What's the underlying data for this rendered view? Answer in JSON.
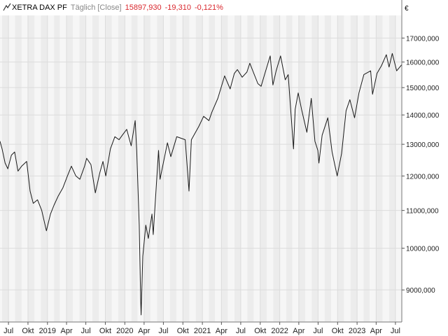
{
  "header": {
    "instrument": "XETRA DAX PF",
    "interval": "Täglich [Close]",
    "last": "15897,930",
    "change": "-19,310",
    "change_pct": "-0,121%",
    "currency": "€",
    "icon": "line-chart-icon"
  },
  "colors": {
    "line": "#1a1a1a",
    "change": "#d9262c",
    "grid": "#dcdcdc",
    "band_a": "#f6f6f6",
    "band_b": "#ececec",
    "text": "#222222",
    "muted": "#888888"
  },
  "chart_data": {
    "type": "line",
    "title": "XETRA DAX PF",
    "xlabel": "",
    "ylabel": "",
    "y_scale": "log",
    "grid": true,
    "ylim": [
      8300,
      18000
    ],
    "x_range": [
      "2018-05-22",
      "2023-07-31"
    ],
    "y_ticks": [
      9000,
      10000,
      11000,
      12000,
      13000,
      14000,
      15000,
      16000,
      17000
    ],
    "y_tick_labels": [
      "9000,000",
      "10000,000",
      "11000,000",
      "12000,000",
      "13000,000",
      "14000,000",
      "15000,000",
      "16000,000",
      "17000,000"
    ],
    "x_ticks": [
      {
        "date": "2018-07-01",
        "label": "Jul"
      },
      {
        "date": "2018-10-01",
        "label": "Okt"
      },
      {
        "date": "2019-01-01",
        "label": "2019"
      },
      {
        "date": "2019-04-01",
        "label": "Apr"
      },
      {
        "date": "2019-07-01",
        "label": "Jul"
      },
      {
        "date": "2019-10-01",
        "label": "Okt"
      },
      {
        "date": "2020-01-01",
        "label": "2020"
      },
      {
        "date": "2020-04-01",
        "label": "Apr"
      },
      {
        "date": "2020-07-01",
        "label": "Jul"
      },
      {
        "date": "2020-10-01",
        "label": "Okt"
      },
      {
        "date": "2021-01-01",
        "label": "2021"
      },
      {
        "date": "2021-04-01",
        "label": "Apr"
      },
      {
        "date": "2021-07-01",
        "label": "Jul"
      },
      {
        "date": "2021-10-01",
        "label": "Okt"
      },
      {
        "date": "2022-01-01",
        "label": "2022"
      },
      {
        "date": "2022-04-01",
        "label": "Apr"
      },
      {
        "date": "2022-07-01",
        "label": "Jul"
      },
      {
        "date": "2022-10-01",
        "label": "Okt"
      },
      {
        "date": "2023-01-01",
        "label": "2023"
      },
      {
        "date": "2023-04-01",
        "label": "Apr"
      },
      {
        "date": "2023-07-01",
        "label": "Jul"
      }
    ],
    "series": [
      {
        "values": [
          [
            "2018-05-22",
            13100
          ],
          [
            "2018-06-01",
            12850
          ],
          [
            "2018-06-15",
            12400
          ],
          [
            "2018-06-28",
            12220
          ],
          [
            "2018-07-15",
            12650
          ],
          [
            "2018-07-30",
            12750
          ],
          [
            "2018-08-15",
            12150
          ],
          [
            "2018-09-01",
            12300
          ],
          [
            "2018-09-25",
            12450
          ],
          [
            "2018-10-11",
            11550
          ],
          [
            "2018-10-26",
            11200
          ],
          [
            "2018-11-15",
            11300
          ],
          [
            "2018-12-05",
            11000
          ],
          [
            "2018-12-27",
            10450
          ],
          [
            "2019-01-15",
            10900
          ],
          [
            "2019-02-01",
            11150
          ],
          [
            "2019-02-20",
            11400
          ],
          [
            "2019-03-15",
            11650
          ],
          [
            "2019-04-05",
            12000
          ],
          [
            "2019-04-24",
            12300
          ],
          [
            "2019-05-15",
            12000
          ],
          [
            "2019-06-03",
            11900
          ],
          [
            "2019-06-25",
            12300
          ],
          [
            "2019-07-05",
            12550
          ],
          [
            "2019-07-25",
            12350
          ],
          [
            "2019-08-15",
            11500
          ],
          [
            "2019-09-05",
            12100
          ],
          [
            "2019-09-20",
            12450
          ],
          [
            "2019-10-03",
            12000
          ],
          [
            "2019-10-25",
            12850
          ],
          [
            "2019-11-15",
            13250
          ],
          [
            "2019-12-05",
            13150
          ],
          [
            "2019-12-20",
            13300
          ],
          [
            "2020-01-10",
            13500
          ],
          [
            "2020-01-31",
            12950
          ],
          [
            "2020-02-19",
            13800
          ],
          [
            "2020-02-26",
            12800
          ],
          [
            "2020-03-09",
            10600
          ],
          [
            "2020-03-16",
            8750
          ],
          [
            "2020-03-18",
            8450
          ],
          [
            "2020-03-26",
            9800
          ],
          [
            "2020-04-09",
            10600
          ],
          [
            "2020-04-21",
            10250
          ],
          [
            "2020-05-08",
            10900
          ],
          [
            "2020-05-14",
            10350
          ],
          [
            "2020-06-08",
            12800
          ],
          [
            "2020-06-15",
            11900
          ],
          [
            "2020-07-20",
            13050
          ],
          [
            "2020-08-05",
            12600
          ],
          [
            "2020-09-02",
            13250
          ],
          [
            "2020-10-12",
            13150
          ],
          [
            "2020-10-30",
            11550
          ],
          [
            "2020-11-10",
            13150
          ],
          [
            "2020-12-15",
            13600
          ],
          [
            "2021-01-07",
            13950
          ],
          [
            "2021-02-01",
            13800
          ],
          [
            "2021-02-15",
            14100
          ],
          [
            "2021-03-15",
            14600
          ],
          [
            "2021-04-16",
            15450
          ],
          [
            "2021-05-12",
            14950
          ],
          [
            "2021-06-01",
            15550
          ],
          [
            "2021-06-15",
            15700
          ],
          [
            "2021-07-08",
            15400
          ],
          [
            "2021-07-30",
            15600
          ],
          [
            "2021-08-13",
            15950
          ],
          [
            "2021-09-20",
            15150
          ],
          [
            "2021-10-05",
            15050
          ],
          [
            "2021-10-25",
            15600
          ],
          [
            "2021-11-17",
            16250
          ],
          [
            "2021-11-30",
            15100
          ],
          [
            "2021-12-15",
            15650
          ],
          [
            "2022-01-05",
            16250
          ],
          [
            "2022-01-27",
            15300
          ],
          [
            "2022-02-10",
            15500
          ],
          [
            "2022-03-07",
            12850
          ],
          [
            "2022-03-15",
            14200
          ],
          [
            "2022-03-29",
            14800
          ],
          [
            "2022-04-14",
            14200
          ],
          [
            "2022-05-09",
            13400
          ],
          [
            "2022-05-30",
            14600
          ],
          [
            "2022-06-16",
            13100
          ],
          [
            "2022-06-30",
            12800
          ],
          [
            "2022-07-05",
            12400
          ],
          [
            "2022-07-20",
            13300
          ],
          [
            "2022-08-16",
            13900
          ],
          [
            "2022-09-05",
            12750
          ],
          [
            "2022-09-29",
            12000
          ],
          [
            "2022-10-20",
            12700
          ],
          [
            "2022-11-10",
            14150
          ],
          [
            "2022-11-28",
            14550
          ],
          [
            "2022-12-20",
            13900
          ],
          [
            "2023-01-10",
            14800
          ],
          [
            "2023-02-02",
            15500
          ],
          [
            "2023-03-06",
            15650
          ],
          [
            "2023-03-15",
            14750
          ],
          [
            "2023-04-05",
            15550
          ],
          [
            "2023-04-26",
            15850
          ],
          [
            "2023-05-19",
            16300
          ],
          [
            "2023-06-01",
            15800
          ],
          [
            "2023-06-16",
            16350
          ],
          [
            "2023-07-07",
            15650
          ],
          [
            "2023-07-31",
            15897.93
          ]
        ]
      }
    ]
  }
}
